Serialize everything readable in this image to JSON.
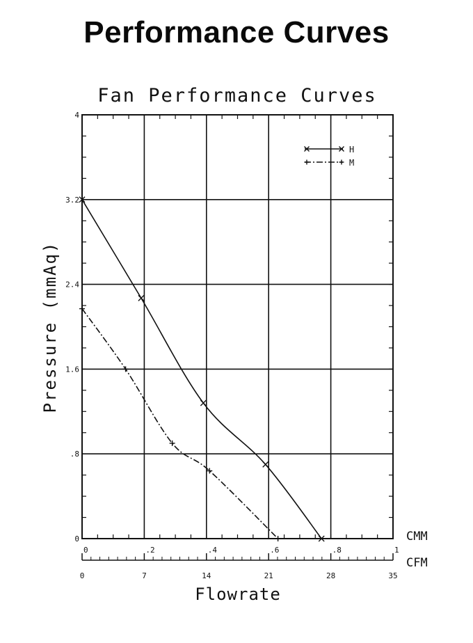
{
  "page": {
    "title": "Performance Curves"
  },
  "chart_data": {
    "type": "line",
    "title": "Fan Performance Curves",
    "xlabel": "Flowrate",
    "ylabel": "Pressure (mmAq)",
    "x_unit": "CMM",
    "x2_unit": "CFM",
    "xlim": [
      0,
      1
    ],
    "ylim": [
      0,
      4
    ],
    "x2lim": [
      0,
      35
    ],
    "x_ticks": [
      "0",
      ".2",
      ".4",
      ".6",
      ".8",
      "1"
    ],
    "x2_ticks": [
      "0",
      "7",
      "14",
      "21",
      "28",
      "35"
    ],
    "y_ticks": [
      "0",
      ".8",
      "1.6",
      "2.4",
      "3.2",
      "4"
    ],
    "grid": true,
    "legend_position": "top-right",
    "series": [
      {
        "name": "H",
        "marker": "x",
        "line_style": "solid",
        "x": [
          0,
          0.19,
          0.39,
          0.59,
          0.77
        ],
        "y": [
          3.2,
          2.27,
          1.28,
          0.7,
          0
        ]
      },
      {
        "name": "M",
        "marker": "+",
        "line_style": "dash-dot",
        "x": [
          0,
          0.14,
          0.29,
          0.41,
          0.63
        ],
        "y": [
          2.17,
          1.6,
          0.9,
          0.64,
          0
        ]
      }
    ]
  }
}
